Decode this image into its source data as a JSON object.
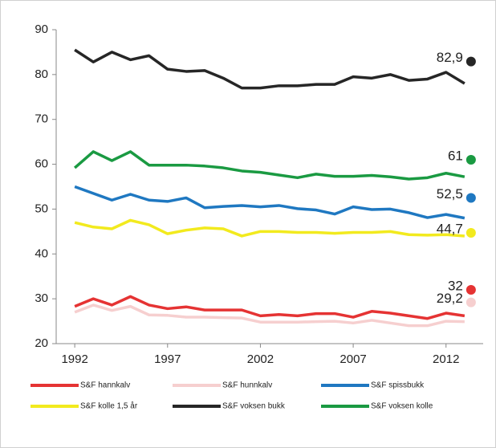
{
  "chart_data": {
    "type": "line",
    "x": [
      1992,
      1993,
      1994,
      1995,
      1996,
      1997,
      1998,
      1999,
      2000,
      2001,
      2002,
      2003,
      2004,
      2005,
      2006,
      2007,
      2008,
      2009,
      2010,
      2011,
      2012,
      2013
    ],
    "xlim": [
      1991,
      2014
    ],
    "xticks": [
      1992,
      1997,
      2002,
      2007,
      2012
    ],
    "ylim": [
      20,
      90
    ],
    "yticks": [
      20,
      30,
      40,
      50,
      60,
      70,
      80,
      90
    ],
    "grid": false,
    "series": [
      {
        "name": "S&F hannkalv",
        "color": "#e53333",
        "values": [
          28.3,
          30,
          28.6,
          30.5,
          28.6,
          27.8,
          28.2,
          27.5,
          27.5,
          27.5,
          26.2,
          26.5,
          26.2,
          26.7,
          26.7,
          25.9,
          27.2,
          26.8,
          26.2,
          25.6,
          26.8,
          26.2
        ],
        "target": 32,
        "target_label": "32"
      },
      {
        "name": "S&F hunnkalv",
        "color": "#f6cfcf",
        "values": [
          27,
          28.6,
          27.4,
          28.3,
          26.4,
          26.3,
          25.9,
          25.9,
          25.8,
          25.7,
          24.8,
          24.8,
          24.8,
          24.9,
          25,
          24.6,
          25.2,
          24.6,
          24,
          24,
          25,
          24.9
        ],
        "target": 29.2,
        "target_label": "29,2"
      },
      {
        "name": "S&F spissbukk",
        "color": "#1f78c1",
        "values": [
          55,
          53.5,
          52,
          53.3,
          52,
          51.7,
          52.5,
          50.3,
          50.6,
          50.8,
          50.5,
          50.8,
          50.1,
          49.8,
          48.9,
          50.5,
          49.9,
          50,
          49.2,
          48.1,
          48.8,
          48
        ],
        "target": 52.5,
        "target_label": "52,5"
      },
      {
        "name": "S&F kolle 1,5 år",
        "color": "#f2ea1e",
        "values": [
          47,
          46,
          45.6,
          47.5,
          46.5,
          44.5,
          45.3,
          45.8,
          45.6,
          44,
          45,
          45,
          44.8,
          44.8,
          44.6,
          44.8,
          44.8,
          45,
          44.3,
          44.2,
          44.3,
          44
        ],
        "target": 44.7,
        "target_label": "44,7"
      },
      {
        "name": "S&F voksen bukk",
        "color": "#262626",
        "values": [
          85.5,
          82.8,
          85,
          83.3,
          84.2,
          81.2,
          80.7,
          80.9,
          79.2,
          77,
          77,
          77.5,
          77.5,
          77.8,
          77.8,
          79.5,
          79.2,
          80,
          78.7,
          79,
          80.5,
          78
        ],
        "target": 82.9,
        "target_label": "82,9"
      },
      {
        "name": "S&F voksen kolle",
        "color": "#1a9a42",
        "values": [
          59.2,
          62.8,
          60.8,
          62.8,
          59.8,
          59.8,
          59.8,
          59.6,
          59.2,
          58.5,
          58.2,
          57.6,
          57,
          57.8,
          57.3,
          57.3,
          57.5,
          57.2,
          56.7,
          57,
          58,
          57.2
        ],
        "target": 61,
        "target_label": "61"
      }
    ]
  }
}
